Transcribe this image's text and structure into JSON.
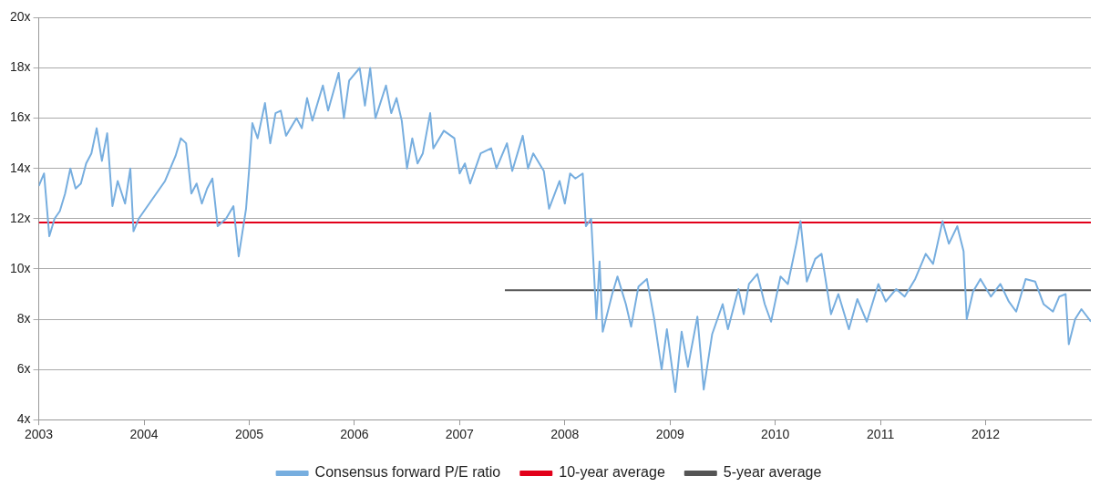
{
  "chart_data": {
    "type": "line",
    "xlim": [
      2003,
      2013
    ],
    "xticks": [
      2003,
      2004,
      2005,
      2006,
      2007,
      2008,
      2009,
      2010,
      2011,
      2012
    ],
    "ylim": [
      4,
      20
    ],
    "yticks": [
      {
        "value": 4,
        "label": "4x"
      },
      {
        "value": 6,
        "label": "6x"
      },
      {
        "value": 8,
        "label": "8x"
      },
      {
        "value": 10,
        "label": "10x"
      },
      {
        "value": 12,
        "label": "12x"
      },
      {
        "value": 14,
        "label": "14x"
      },
      {
        "value": 16,
        "label": "16x"
      },
      {
        "value": 18,
        "label": "18x"
      },
      {
        "value": 20,
        "label": "20x"
      }
    ],
    "grid": "y",
    "legend": "bottom",
    "marker": "none",
    "line_style": "solid",
    "series": [
      {
        "name": "Consensus forward P/E ratio",
        "color": "#77aedf",
        "x": [
          2003.0,
          2003.05,
          2003.1,
          2003.15,
          2003.2,
          2003.25,
          2003.3,
          2003.35,
          2003.4,
          2003.45,
          2003.5,
          2003.55,
          2003.6,
          2003.65,
          2003.7,
          2003.75,
          2003.82,
          2003.87,
          2003.9,
          2003.95,
          2004.0,
          2004.05,
          2004.1,
          2004.15,
          2004.2,
          2004.25,
          2004.3,
          2004.35,
          2004.4,
          2004.45,
          2004.5,
          2004.55,
          2004.6,
          2004.65,
          2004.7,
          2004.78,
          2004.85,
          2004.9,
          2004.97,
          2005.0,
          2005.03,
          2005.08,
          2005.15,
          2005.2,
          2005.25,
          2005.3,
          2005.35,
          2005.45,
          2005.5,
          2005.55,
          2005.6,
          2005.7,
          2005.75,
          2005.85,
          2005.9,
          2005.95,
          2006.05,
          2006.1,
          2006.15,
          2006.2,
          2006.3,
          2006.35,
          2006.4,
          2006.45,
          2006.5,
          2006.55,
          2006.6,
          2006.65,
          2006.72,
          2006.75,
          2006.85,
          2006.95,
          2007.0,
          2007.05,
          2007.1,
          2007.15,
          2007.2,
          2007.3,
          2007.35,
          2007.45,
          2007.5,
          2007.6,
          2007.65,
          2007.7,
          2007.8,
          2007.85,
          2007.95,
          2008.0,
          2008.05,
          2008.1,
          2008.17,
          2008.2,
          2008.25,
          2008.3,
          2008.33,
          2008.36,
          2008.45,
          2008.5,
          2008.58,
          2008.63,
          2008.7,
          2008.78,
          2008.85,
          2008.92,
          2008.97,
          2009.05,
          2009.11,
          2009.17,
          2009.26,
          2009.32,
          2009.4,
          2009.5,
          2009.55,
          2009.65,
          2009.7,
          2009.75,
          2009.83,
          2009.9,
          2009.96,
          2010.05,
          2010.12,
          2010.2,
          2010.24,
          2010.3,
          2010.38,
          2010.44,
          2010.53,
          2010.6,
          2010.7,
          2010.78,
          2010.87,
          2010.98,
          2011.05,
          2011.15,
          2011.23,
          2011.33,
          2011.43,
          2011.5,
          2011.59,
          2011.65,
          2011.73,
          2011.79,
          2011.82,
          2011.88,
          2011.95,
          2012.05,
          2012.14,
          2012.22,
          2012.29,
          2012.38,
          2012.47,
          2012.55,
          2012.64,
          2012.7,
          2012.76,
          2012.79,
          2012.85,
          2012.91,
          2013.0
        ],
        "values": [
          13.3,
          13.8,
          11.3,
          12.0,
          12.3,
          13.0,
          14.0,
          13.2,
          13.4,
          14.2,
          14.6,
          15.6,
          14.3,
          15.4,
          12.5,
          13.5,
          12.6,
          14.0,
          11.5,
          12.0,
          12.3,
          12.6,
          12.9,
          13.2,
          13.5,
          14.0,
          14.5,
          15.2,
          15.0,
          13.0,
          13.4,
          12.6,
          13.2,
          13.6,
          11.7,
          12.0,
          12.5,
          10.5,
          12.4,
          14.0,
          15.8,
          15.2,
          16.6,
          15.0,
          16.2,
          16.3,
          15.3,
          16.0,
          15.6,
          16.8,
          15.9,
          17.3,
          16.3,
          17.8,
          16.0,
          17.5,
          18.0,
          16.5,
          18.0,
          16.0,
          17.3,
          16.2,
          16.8,
          15.9,
          14.0,
          15.2,
          14.2,
          14.6,
          16.2,
          14.8,
          15.5,
          15.2,
          13.8,
          14.2,
          13.4,
          14.0,
          14.6,
          14.8,
          14.0,
          15.0,
          13.9,
          15.3,
          14.0,
          14.6,
          13.9,
          12.4,
          13.5,
          12.6,
          13.8,
          13.6,
          13.8,
          11.7,
          12.0,
          8.0,
          10.3,
          7.5,
          9.0,
          9.7,
          8.6,
          7.7,
          9.3,
          9.6,
          8.0,
          6.0,
          7.6,
          5.1,
          7.5,
          6.1,
          8.1,
          5.2,
          7.4,
          8.6,
          7.6,
          9.2,
          8.2,
          9.4,
          9.8,
          8.6,
          7.9,
          9.7,
          9.4,
          11.0,
          11.9,
          9.5,
          10.4,
          10.6,
          8.2,
          9.0,
          7.6,
          8.8,
          7.9,
          9.4,
          8.7,
          9.2,
          8.9,
          9.6,
          10.6,
          10.2,
          11.9,
          11.0,
          11.7,
          10.7,
          8.0,
          9.1,
          9.6,
          8.9,
          9.4,
          8.7,
          8.3,
          9.6,
          9.5,
          8.6,
          8.3,
          8.9,
          9.0,
          7.0,
          8.0,
          8.4,
          7.9
        ]
      },
      {
        "name": "10-year average",
        "color": "#e2001a",
        "x": [
          2003,
          2013
        ],
        "values": [
          11.85,
          11.85
        ]
      },
      {
        "name": "5-year average",
        "color": "#555555",
        "x": [
          2007.43,
          2013
        ],
        "values": [
          9.15,
          9.15
        ]
      }
    ]
  }
}
